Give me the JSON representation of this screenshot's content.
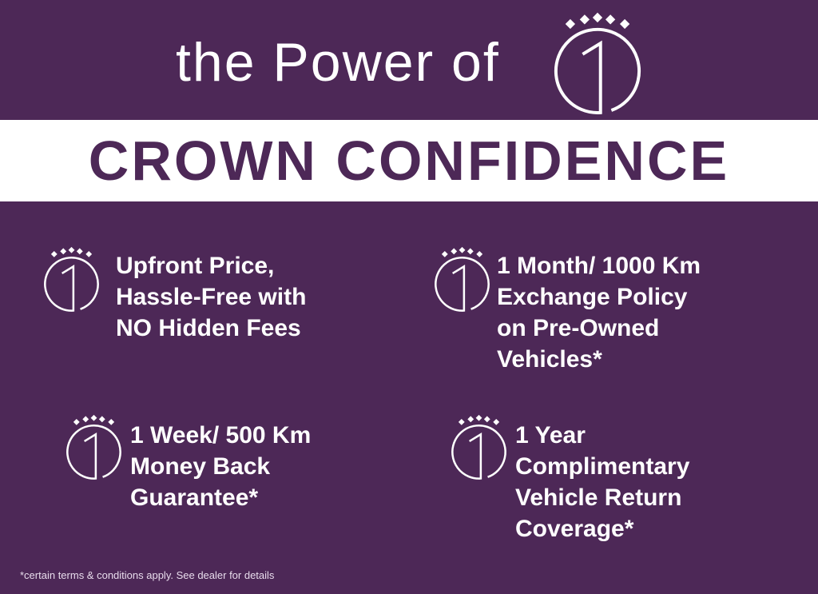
{
  "header": {
    "title": "the Power of"
  },
  "banner": {
    "title": "CROWN CONFIDENCE"
  },
  "colors": {
    "background": "#4d2857",
    "band": "#ffffff",
    "text": "#ffffff"
  },
  "logo_icon": "crown-one-circle-icon",
  "features": [
    {
      "lines": [
        "Upfront Price,",
        "Hassle-Free with",
        "NO Hidden Fees"
      ]
    },
    {
      "lines": [
        "1 Month/ 1000 Km",
        "Exchange Policy",
        "on Pre-Owned",
        "Vehicles*"
      ]
    },
    {
      "lines": [
        "1 Week/ 500 Km",
        "Money Back",
        "Guarantee*"
      ]
    },
    {
      "lines": [
        "1 Year",
        "Complimentary",
        "Vehicle Return",
        "Coverage*"
      ]
    }
  ],
  "footer": {
    "disclaimer": "*certain terms & conditions apply. See dealer for details"
  }
}
